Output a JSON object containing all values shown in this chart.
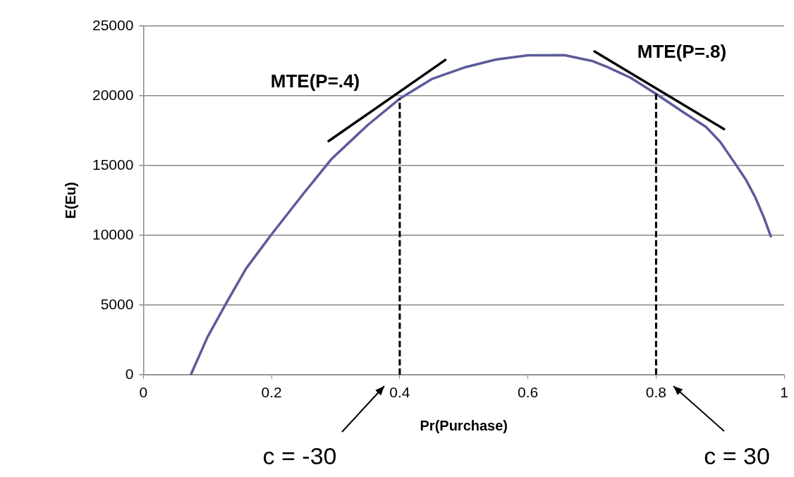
{
  "chart_data": {
    "type": "line",
    "xlabel": "Pr(Purchase)",
    "ylabel": "E(Eu)",
    "xlim": [
      0,
      1
    ],
    "xticks": [
      0,
      0.2,
      0.4,
      0.6,
      0.8,
      1
    ],
    "ylim": [
      0,
      25000
    ],
    "yticks": [
      0,
      5000,
      10000,
      15000,
      20000,
      25000
    ],
    "grid": "y",
    "legend": false,
    "marker": "none",
    "series": [
      {
        "color": "#5b5b9b",
        "line_style": "solid",
        "x": [
          0.074,
          0.1,
          0.129,
          0.16,
          0.2,
          0.25,
          0.294,
          0.35,
          0.4,
          0.45,
          0.503,
          0.55,
          0.6,
          0.657,
          0.7,
          0.724,
          0.76,
          0.8,
          0.84,
          0.878,
          0.9,
          0.922,
          0.94,
          0.955,
          0.968,
          0.979
        ],
        "values": [
          0,
          2700,
          5110,
          7600,
          10070,
          13000,
          15490,
          17900,
          19790,
          21200,
          22060,
          22600,
          22900,
          22920,
          22500,
          22060,
          21300,
          20140,
          18900,
          17760,
          16700,
          15230,
          14000,
          12700,
          11300,
          9920
        ]
      },
      {
        "color": "#000000",
        "line_style": "solid",
        "x": [
          0.289,
          0.471
        ],
        "values": [
          16750,
          22570
        ]
      },
      {
        "color": "#000000",
        "line_style": "solid",
        "x": [
          0.704,
          0.906
        ],
        "values": [
          23180,
          17610
        ]
      }
    ],
    "ref_lines": [
      {
        "axis": "x",
        "value": 0.4,
        "color": "#000000",
        "line_style": "dashed"
      },
      {
        "axis": "x",
        "value": 0.8,
        "color": "#000000",
        "line_style": "dashed"
      }
    ],
    "annotations": [
      "MTE(P=.4)",
      "MTE(P=.8)",
      "c = -30",
      "c = 30"
    ]
  }
}
